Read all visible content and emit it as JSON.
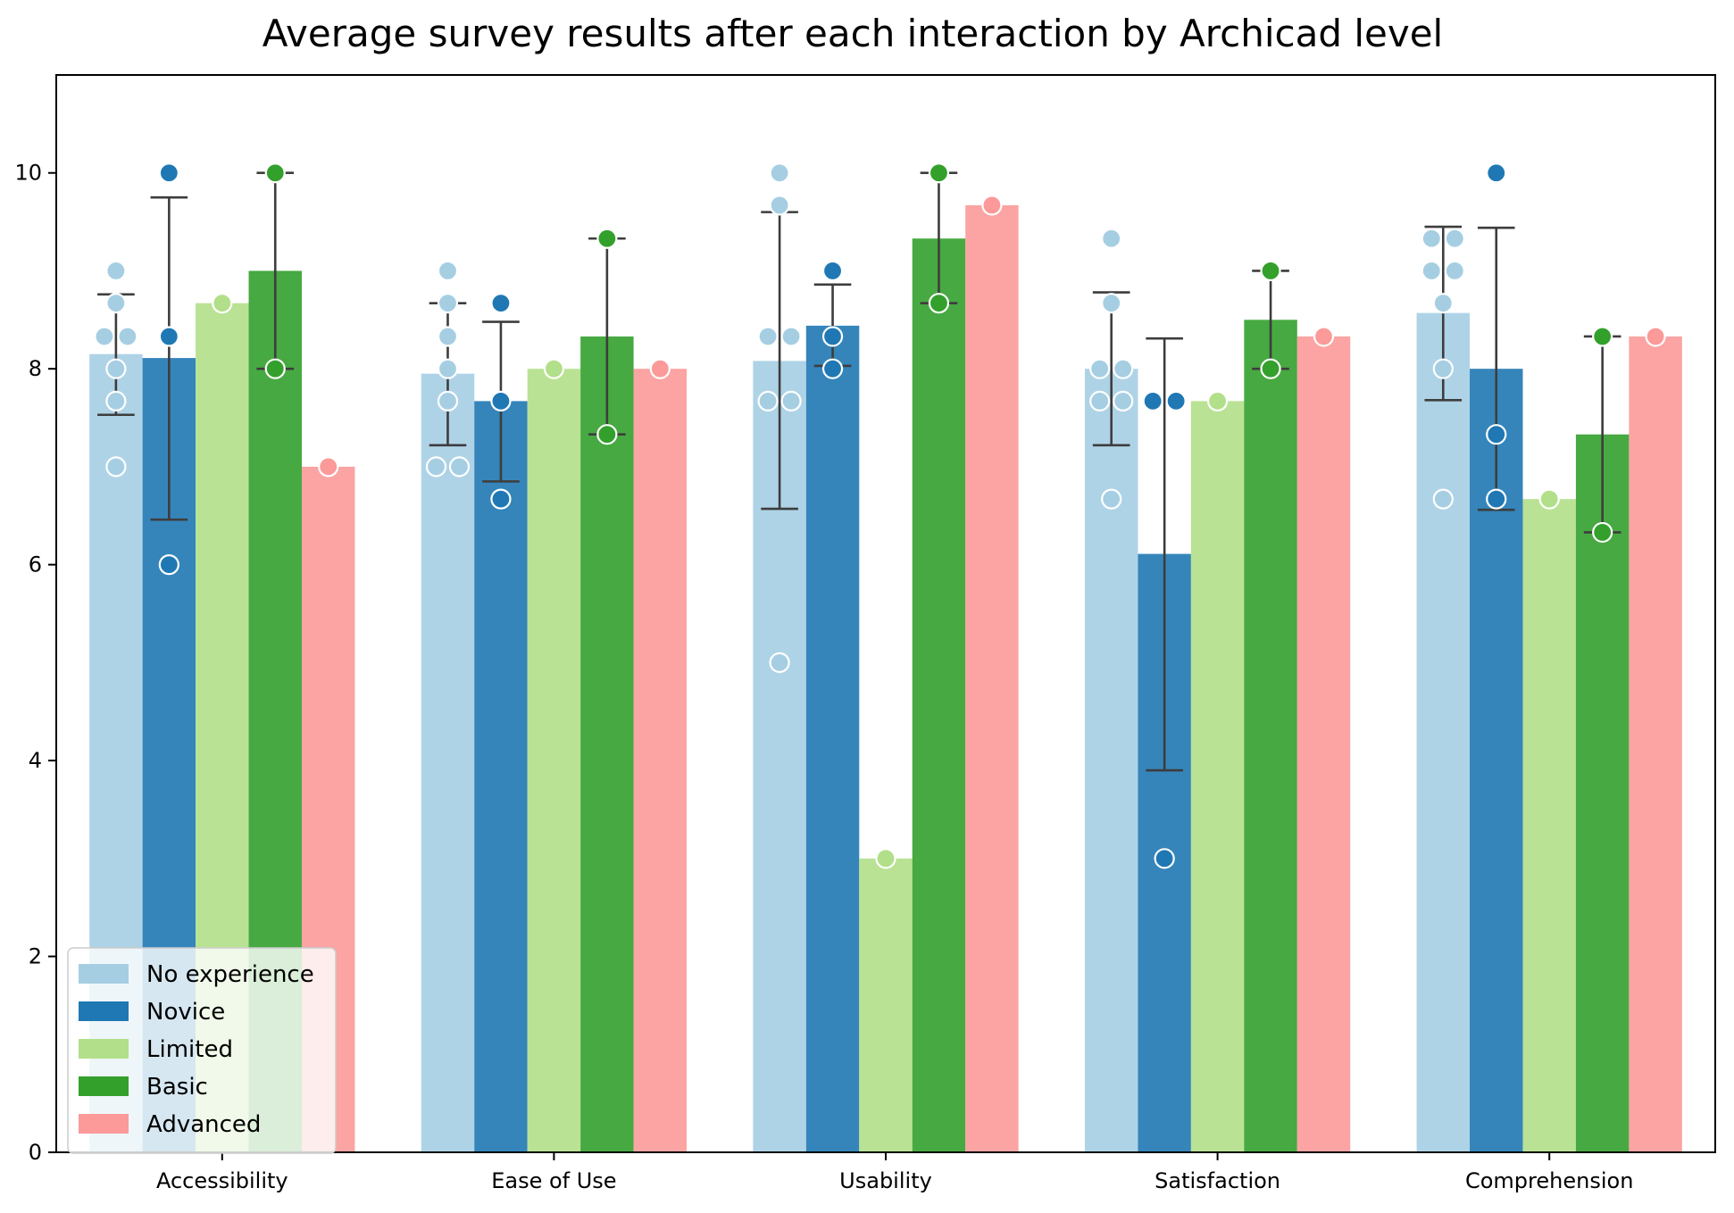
{
  "chart_data": {
    "type": "bar",
    "title": "Average survey results after each interaction by Archicad level",
    "xlabel": "",
    "ylabel": "",
    "ylim": [
      0,
      11
    ],
    "yticks": [
      0,
      2,
      4,
      6,
      8,
      10
    ],
    "grid": false,
    "legend_position": "lower-left",
    "categories": [
      "Accessibility",
      "Ease of Use",
      "Usability",
      "Satisfaction",
      "Comprehension"
    ],
    "series": [
      {
        "name": "No experience",
        "color": "#a6cee3",
        "values": [
          8.15,
          7.95,
          8.08,
          8.0,
          8.57
        ],
        "error": [
          [
            7.53,
            8.76
          ],
          [
            7.22,
            8.67
          ],
          [
            6.57,
            9.6
          ],
          [
            7.22,
            8.78
          ],
          [
            7.68,
            9.45
          ]
        ],
        "points": [
          [
            9.0,
            8.67,
            8.33,
            8.33,
            8.0,
            7.67,
            7.0
          ],
          [
            9.0,
            8.67,
            8.33,
            8.0,
            7.67,
            7.0,
            7.0
          ],
          [
            10.0,
            9.67,
            8.33,
            8.33,
            7.67,
            7.67,
            5.0
          ],
          [
            9.33,
            8.67,
            8.0,
            8.0,
            7.67,
            7.67,
            6.67
          ],
          [
            9.33,
            9.33,
            9.0,
            9.0,
            8.67,
            8.0,
            6.67
          ]
        ]
      },
      {
        "name": "Novice",
        "color": "#1f78b4",
        "values": [
          8.11,
          7.67,
          8.44,
          6.11,
          8.0
        ],
        "error": [
          [
            6.46,
            9.75
          ],
          [
            6.85,
            8.48
          ],
          [
            8.03,
            8.86
          ],
          [
            3.9,
            8.31
          ],
          [
            6.56,
            9.44
          ]
        ],
        "points": [
          [
            10.0,
            8.33,
            6.0
          ],
          [
            8.67,
            7.67,
            6.67
          ],
          [
            9.0,
            8.33,
            8.0
          ],
          [
            7.67,
            7.67,
            3.0
          ],
          [
            10.0,
            7.33,
            6.67
          ]
        ]
      },
      {
        "name": "Limited",
        "color": "#b2df8a",
        "values": [
          8.67,
          8.0,
          3.0,
          7.67,
          6.67
        ],
        "error": [
          null,
          null,
          null,
          null,
          null
        ],
        "points": [
          [
            8.67
          ],
          [
            8.0
          ],
          [
            3.0
          ],
          [
            7.67
          ],
          [
            6.67
          ]
        ]
      },
      {
        "name": "Basic",
        "color": "#33a02c",
        "values": [
          9.0,
          8.33,
          9.33,
          8.5,
          7.33
        ],
        "error": [
          [
            8.0,
            10.0
          ],
          [
            7.33,
            9.33
          ],
          [
            8.67,
            10.0
          ],
          [
            8.0,
            9.0
          ],
          [
            6.33,
            8.33
          ]
        ],
        "points": [
          [
            10.0,
            8.0
          ],
          [
            9.33,
            7.33
          ],
          [
            10.0,
            8.67
          ],
          [
            9.0,
            8.0
          ],
          [
            8.33,
            6.33
          ]
        ]
      },
      {
        "name": "Advanced",
        "color": "#fb9a99",
        "values": [
          7.0,
          8.0,
          9.67,
          8.33,
          8.33
        ],
        "error": [
          null,
          null,
          null,
          null,
          null
        ],
        "points": [
          [
            7.0
          ],
          [
            8.0
          ],
          [
            9.67
          ],
          [
            8.33
          ],
          [
            8.33
          ]
        ]
      }
    ]
  }
}
